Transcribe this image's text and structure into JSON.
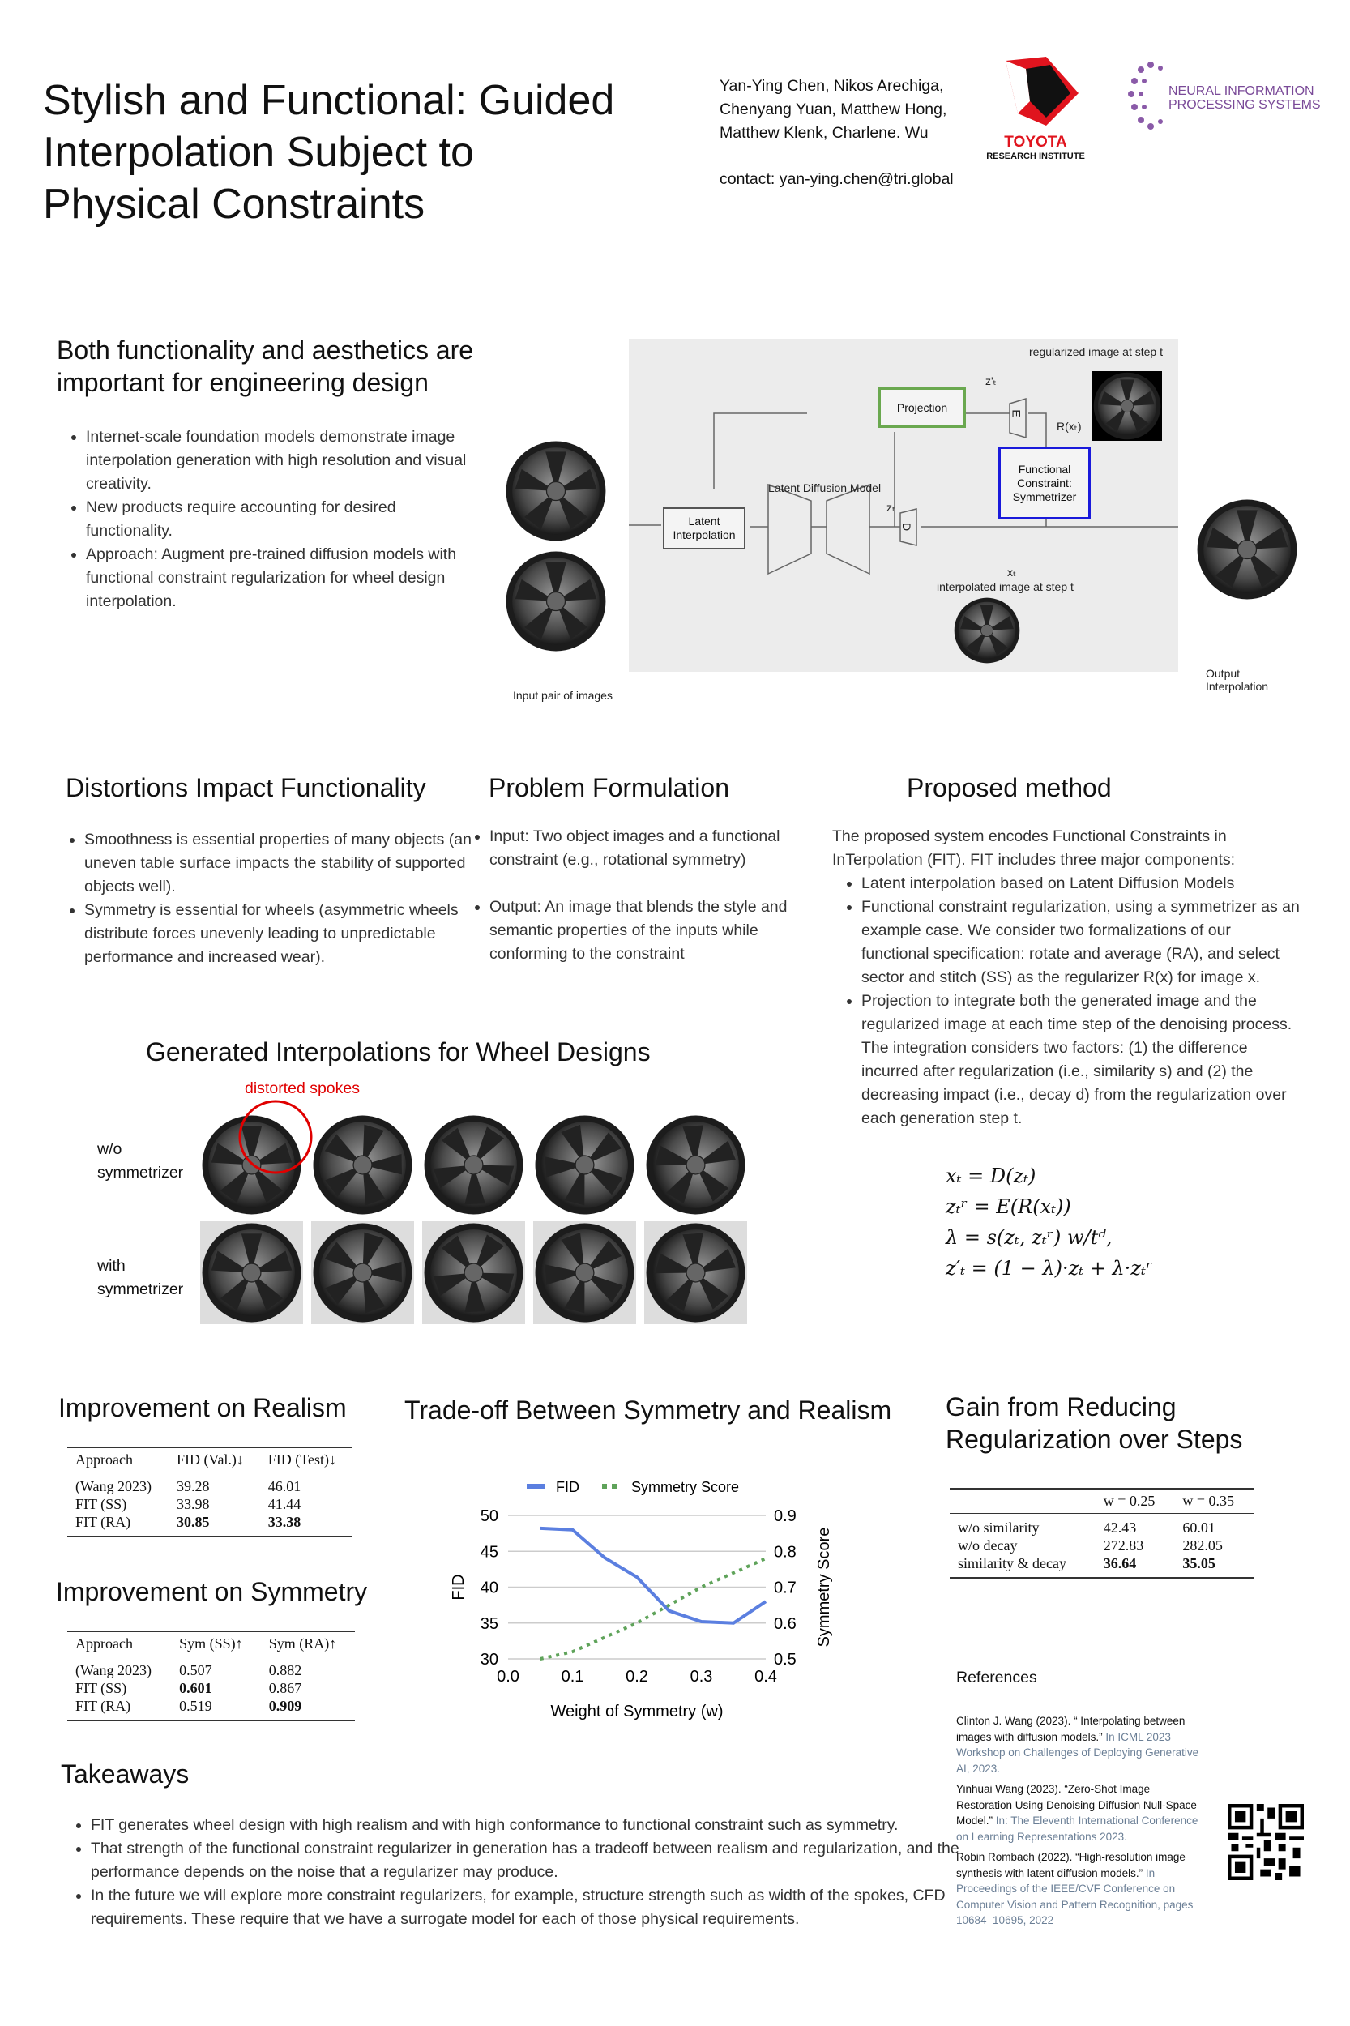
{
  "header": {
    "title": "Stylish and Functional: Guided Interpolation Subject to Physical Constraints",
    "authors": [
      "Yan-Ying Chen, Nikos Arechiga,",
      "Chenyang Yuan, Matthew Hong,",
      "Matthew Klenk, Charlene. Wu"
    ],
    "contact": "contact: yan-ying.chen@tri.global",
    "toyota_logo": {
      "name": "TOYOTA",
      "sub": "RESEARCH INSTITUTE",
      "color": "#e0141e"
    },
    "neurips_logo": {
      "line1": "NEURAL INFORMATION",
      "line2": "PROCESSING SYSTEMS",
      "color": "#8a5aa8"
    }
  },
  "intro": {
    "heading": "Both functionality and aesthetics are important for engineering design",
    "bullets": [
      "Internet-scale foundation models demonstrate image interpolation generation with high resolution and visual creativity.",
      "New products require accounting for desired functionality.",
      "Approach: Augment pre-trained diffusion models with functional constraint regularization for wheel design interpolation."
    ]
  },
  "diagram": {
    "regularized_label": "regularized image at step t",
    "projection": "Projection",
    "z_prime": "z'ₜ",
    "encoder": "E",
    "decoder": "D",
    "r_label": "R(xₜ)",
    "ldm_label": "Latent Diffusion Model",
    "latent_interp": "Latent Interpolation",
    "zt": "zₜ",
    "constraint": "Functional Constraint: Symmetrizer",
    "xt": "xₜ",
    "interpolated_label": "interpolated image at step t",
    "input_label": "Input pair of images",
    "output_label": "Output Interpolation",
    "projection_color": "#6aa84f",
    "constraint_color": "#1a1adb"
  },
  "distortions": {
    "heading": "Distortions Impact Functionality",
    "bullets": [
      "Smoothness is essential properties of many objects (an uneven table surface impacts the stability of supported objects well).",
      "Symmetry is essential for wheels (asymmetric wheels distribute forces unevenly leading to unpredictable performance and increased wear)."
    ]
  },
  "problem": {
    "heading": "Problem Formulation",
    "bullets": [
      "Input: Two object images and a functional constraint (e.g., rotational symmetry)",
      "Output: An image that blends the style and semantic properties of the inputs while conforming to the constraint"
    ]
  },
  "method": {
    "heading": "Proposed method",
    "intro": "The proposed system encodes Functional Constraints in InTerpolation (FIT). FIT includes three major components:",
    "bullets": [
      "Latent interpolation based on Latent Diffusion Models",
      "Functional constraint regularization, using a symmetrizer as an example case. We consider two formalizations of our functional specification: rotate and average (RA), and select sector and stitch (SS) as the regularizer R(x) for image x.",
      "Projection to integrate both the generated image and the regularized image at each time step of the denoising process. The integration considers two factors: (1) the difference incurred after regularization (i.e., similarity s) and (2) the decreasing impact (i.e., decay d) from the regularization over each generation step t."
    ],
    "equations": [
      "xₜ = D(zₜ)",
      "zₜʳ = E(R(xₜ))",
      "λ = s(zₜ, zₜʳ) w/tᵈ,",
      "z′ₜ = (1 − λ)·zₜ + λ·zₜʳ"
    ]
  },
  "generated": {
    "heading": "Generated Interpolations for Wheel Designs",
    "annotation": "distorted spokes",
    "annotation_color": "#e00000",
    "row1": "w/o symmetrizer",
    "row2": "with symmetrizer"
  },
  "realism": {
    "heading": "Improvement on Realism",
    "columns": [
      "Approach",
      "FID (Val.)↓",
      "FID (Test)↓"
    ],
    "rows": [
      [
        "(Wang 2023)",
        "39.28",
        "46.01"
      ],
      [
        "FIT (SS)",
        "33.98",
        "41.44"
      ],
      [
        "FIT (RA)",
        "30.85",
        "33.38"
      ]
    ],
    "bold": [
      [
        2,
        1
      ],
      [
        2,
        2
      ]
    ]
  },
  "symmetry": {
    "heading": "Improvement on Symmetry",
    "columns": [
      "Approach",
      "Sym (SS)↑",
      "Sym (RA)↑"
    ],
    "rows": [
      [
        "(Wang 2023)",
        "0.507",
        "0.882"
      ],
      [
        "FIT (SS)",
        "0.601",
        "0.867"
      ],
      [
        "FIT (RA)",
        "0.519",
        "0.909"
      ]
    ],
    "bold": [
      [
        1,
        1
      ],
      [
        2,
        2
      ]
    ]
  },
  "tradeoff": {
    "heading": "Trade-off Between Symmetry and Realism"
  },
  "chart_data": {
    "type": "line",
    "xlabel": "Weight of Symmetry (w)",
    "ylabel": "FID",
    "y2label": "Symmetry Score",
    "xlim": [
      0,
      0.4
    ],
    "ylim": [
      30,
      50
    ],
    "y2lim": [
      0.5,
      0.9
    ],
    "xticks": [
      "0.0",
      "0.1",
      "0.2",
      "0.3",
      "0.4"
    ],
    "yticks": [
      "30",
      "35",
      "40",
      "45",
      "50"
    ],
    "y2ticks": [
      "0.5",
      "0.6",
      "0.7",
      "0.8",
      "0.9"
    ],
    "grid": true,
    "legend": "top",
    "x": [
      0.05,
      0.1,
      0.15,
      0.2,
      0.25,
      0.3,
      0.35,
      0.4
    ],
    "series": [
      {
        "name": "FID",
        "axis": "left",
        "color": "#5b7fe0",
        "style": "solid",
        "values": [
          48.2,
          48.0,
          44.1,
          41.4,
          36.7,
          35.2,
          35.0,
          38.0
        ]
      },
      {
        "name": "Symmetry Score",
        "axis": "right",
        "color": "#5fa35a",
        "style": "dotted",
        "values": [
          0.5,
          0.52,
          0.56,
          0.6,
          0.65,
          0.7,
          0.74,
          0.78
        ]
      }
    ]
  },
  "gain": {
    "heading": "Gain from Reducing Regularization over Steps",
    "columns": [
      "",
      "w = 0.25",
      "w = 0.35"
    ],
    "rows": [
      [
        "w/o similarity",
        "42.43",
        "60.01"
      ],
      [
        "w/o decay",
        "272.83",
        "282.05"
      ],
      [
        "similarity & decay",
        "36.64",
        "35.05"
      ]
    ],
    "bold": [
      [
        2,
        1
      ],
      [
        2,
        2
      ]
    ]
  },
  "references": {
    "heading": "References",
    "items": [
      {
        "main": "Clinton J. Wang (2023). “ Interpolating between images with diffusion models.”",
        "venue": " In ICML 2023 Workshop on Challenges of Deploying Generative AI, 2023."
      },
      {
        "main": "Yinhuai Wang (2023). “Zero-Shot Image Restoration Using Denoising Diffusion Null-Space Model.”",
        "venue": " In: The Eleventh International Conference on Learning Representations 2023."
      },
      {
        "main": "Robin Rombach (2022). “High-resolution image synthesis with latent diffusion models.”",
        "venue": " In Proceedings of the IEEE/CVF Conference on Computer Vision and Pattern Recognition, pages 10684–10695, 2022"
      }
    ]
  },
  "takeaways": {
    "heading": "Takeaways",
    "bullets": [
      "FIT generates wheel design with high realism and with high conformance to functional constraint such as symmetry.",
      "That strength of the functional constraint regularizer in generation has a tradeoff between realism and regularization, and the performance depends on the noise that a regularizer may produce.",
      "In the future we will explore more constraint regularizers, for example, structure strength such as width of the spokes, CFD requirements. These require that we have a surrogate model for each of those physical requirements."
    ]
  }
}
